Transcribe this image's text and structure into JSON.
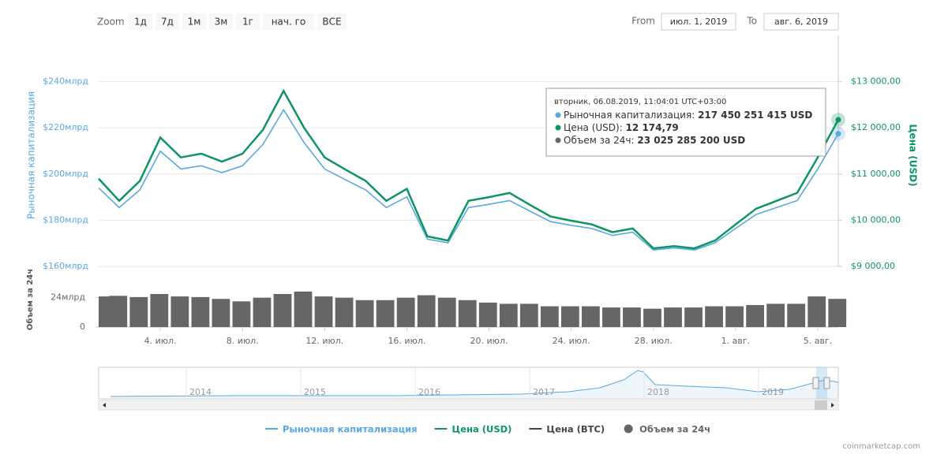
{
  "chart_data": {
    "type": "line",
    "zoom_label": "Zoom",
    "zoom_buttons": [
      "1д",
      "7д",
      "1м",
      "3м",
      "1г",
      "нач. го",
      "ВСЕ"
    ],
    "from_label": "From",
    "from_value": "июл. 1, 2019",
    "to_label": "To",
    "to_value": "авг. 6, 2019",
    "ylabel": "Рыночная капитализация",
    "y2label": "Цена (USD)",
    "y3label": "Объем за 24ч",
    "x": [
      "2019-07-01",
      "2019-07-02",
      "2019-07-03",
      "2019-07-04",
      "2019-07-05",
      "2019-07-06",
      "2019-07-07",
      "2019-07-08",
      "2019-07-09",
      "2019-07-10",
      "2019-07-11",
      "2019-07-12",
      "2019-07-13",
      "2019-07-14",
      "2019-07-15",
      "2019-07-16",
      "2019-07-17",
      "2019-07-18",
      "2019-07-19",
      "2019-07-20",
      "2019-07-21",
      "2019-07-22",
      "2019-07-23",
      "2019-07-24",
      "2019-07-25",
      "2019-07-26",
      "2019-07-27",
      "2019-07-28",
      "2019-07-29",
      "2019-07-30",
      "2019-07-31",
      "2019-08-01",
      "2019-08-02",
      "2019-08-03",
      "2019-08-04",
      "2019-08-05",
      "2019-08-06"
    ],
    "xlim": [
      "2019-07-01",
      "2019-08-06"
    ],
    "xticks": [
      {
        "value": "2019-07-04",
        "label": "4. июл."
      },
      {
        "value": "2019-07-08",
        "label": "8. июл."
      },
      {
        "value": "2019-07-12",
        "label": "12. июл."
      },
      {
        "value": "2019-07-16",
        "label": "16. июл."
      },
      {
        "value": "2019-07-20",
        "label": "20. июл."
      },
      {
        "value": "2019-07-24",
        "label": "24. июл."
      },
      {
        "value": "2019-07-28",
        "label": "28. июл."
      },
      {
        "value": "2019-08-01",
        "label": "1. авг."
      },
      {
        "value": "2019-08-05",
        "label": "5. авг."
      }
    ],
    "ylim": [
      160000000000,
      260000000000
    ],
    "yticks": [
      {
        "value": 160000000000,
        "label": "$160млрд"
      },
      {
        "value": 180000000000,
        "label": "$180млрд"
      },
      {
        "value": 200000000000,
        "label": "$200млрд"
      },
      {
        "value": 220000000000,
        "label": "$220млрд"
      },
      {
        "value": 240000000000,
        "label": "$240млрд"
      }
    ],
    "y2lim": [
      9000,
      14000
    ],
    "y2ticks": [
      {
        "value": 9000,
        "label": "$9 000,00"
      },
      {
        "value": 10000,
        "label": "$10 000,00"
      },
      {
        "value": 11000,
        "label": "$11 000,00"
      },
      {
        "value": 12000,
        "label": "$12 000,00"
      },
      {
        "value": 13000,
        "label": "$13 000,00"
      }
    ],
    "y3lim": [
      0,
      45000000000
    ],
    "y3ticks": [
      0,
      {
        "value": 24000000000,
        "label": "24млрд"
      }
    ],
    "grid": true,
    "series": [
      {
        "name": "Рыночная капитализация",
        "color": "#5aa8e0",
        "axis": "y",
        "values": [
          194000000000,
          185500000000,
          193100000000,
          209900000000,
          202200000000,
          203600000000,
          200600000000,
          203600000000,
          212900000000,
          227800000000,
          213600000000,
          202200000000,
          197600000000,
          193100000000,
          185500000000,
          190100000000,
          171800000000,
          170200000000,
          185500000000,
          186900000000,
          188500000000,
          183900000000,
          179400000000,
          177800000000,
          176400000000,
          173400000000,
          174800000000,
          167100000000,
          168000000000,
          167100000000,
          170200000000,
          176400000000,
          182500000000,
          185500000000,
          188500000000,
          202200000000,
          217450251415
        ]
      },
      {
        "name": "Цена (USD)",
        "color": "#0d9463",
        "axis": "y2",
        "values": [
          10900,
          10420,
          10850,
          11790,
          11360,
          11440,
          11270,
          11440,
          11960,
          12800,
          12000,
          11360,
          11100,
          10850,
          10420,
          10680,
          9650,
          9560,
          10420,
          10500,
          10590,
          10330,
          10080,
          9990,
          9910,
          9740,
          9820,
          9390,
          9440,
          9390,
          9560,
          9910,
          10250,
          10420,
          10590,
          11360,
          12174.79
        ]
      },
      {
        "name": "Объем за 24ч",
        "color": "#666666",
        "axis": "y3",
        "type": "bar",
        "values": [
          25000000000,
          25500000000,
          24500000000,
          27000000000,
          25000000000,
          24500000000,
          23000000000,
          21000000000,
          24000000000,
          27000000000,
          29000000000,
          25000000000,
          24000000000,
          22000000000,
          22000000000,
          24000000000,
          26000000000,
          24000000000,
          22000000000,
          20000000000,
          19000000000,
          19000000000,
          17000000000,
          17000000000,
          17000000000,
          16000000000,
          16000000000,
          15000000000,
          16000000000,
          16000000000,
          17000000000,
          17000000000,
          18000000000,
          19000000000,
          19000000000,
          25000000000,
          23025285200
        ]
      }
    ],
    "hidden_series": [
      {
        "name": "Цена (BTC)",
        "color": "#444444"
      }
    ],
    "tooltip": {
      "header": "вторник, 06.08.2019, 11:04:01 UTC+03:00",
      "items": [
        {
          "label": "Рыночная капитализация: ",
          "value": "217 450 251 415 USD"
        },
        {
          "label": "Цена (USD): ",
          "value": "12 174,79"
        },
        {
          "label": "Объем за 24ч: ",
          "value": "23 025 285 200 USD"
        }
      ]
    },
    "navigator_labels": [
      "2014",
      "2015",
      "2016",
      "2017",
      "2018",
      "2019"
    ],
    "credit": "coinmarketcap.com"
  }
}
